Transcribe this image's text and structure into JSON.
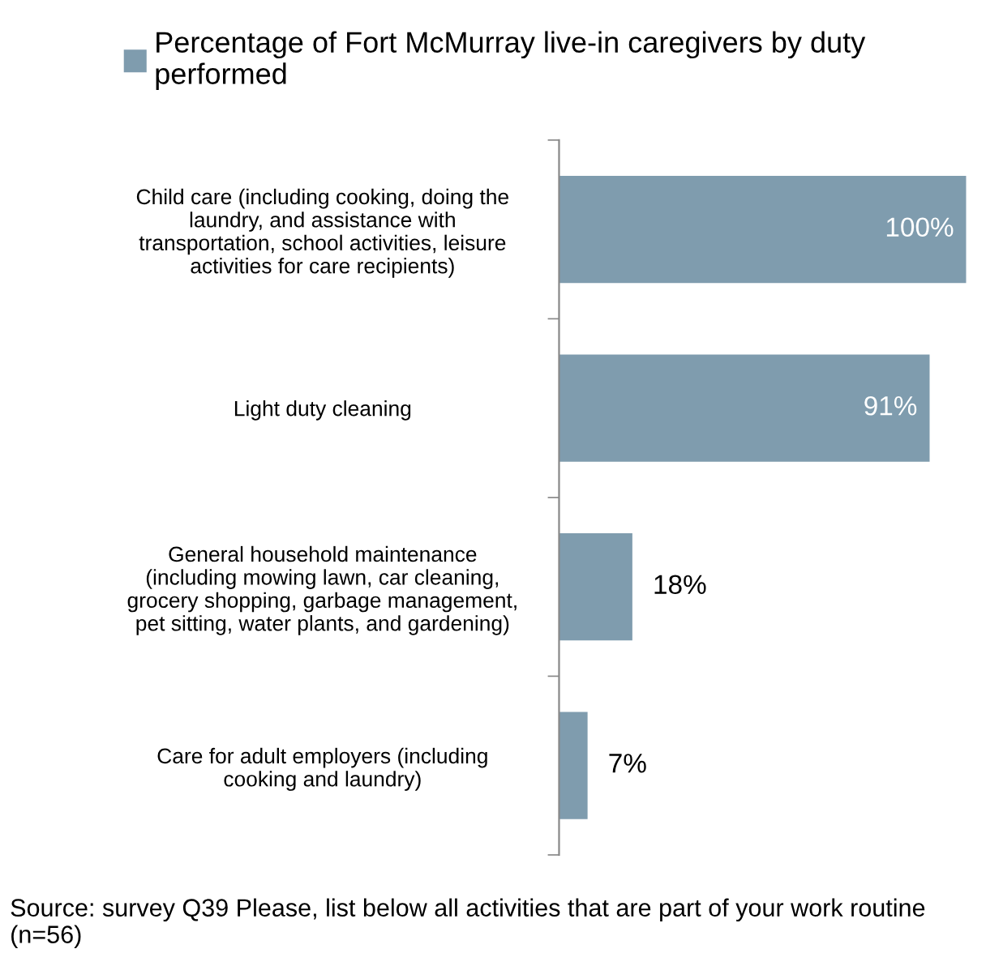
{
  "chart_data": {
    "type": "bar",
    "orientation": "horizontal",
    "categories": [
      "Child care (including cooking, doing the\nlaundry, and assistance with\ntransportation, school activities, leisure\nactivities for care recipients)",
      "Light duty cleaning",
      "General household maintenance\n(including mowing lawn, car cleaning,\ngrocery shopping, garbage management,\npet sitting, water plants, and gardening)",
      "Care for adult employers (including\ncooking and laundry)"
    ],
    "series": [
      {
        "name": "Percentage of Fort McMurray live-in caregivers by duty\nperformed",
        "color": "#7f9cae",
        "values": [
          100,
          91,
          18,
          7
        ],
        "value_labels": [
          "100%",
          "91%",
          "18%",
          "7%"
        ]
      }
    ],
    "legend": "top left",
    "grid": false,
    "annotations": [
      "Source: survey Q39 Please, list below all activities that are part of your work routine (n=56)"
    ]
  }
}
